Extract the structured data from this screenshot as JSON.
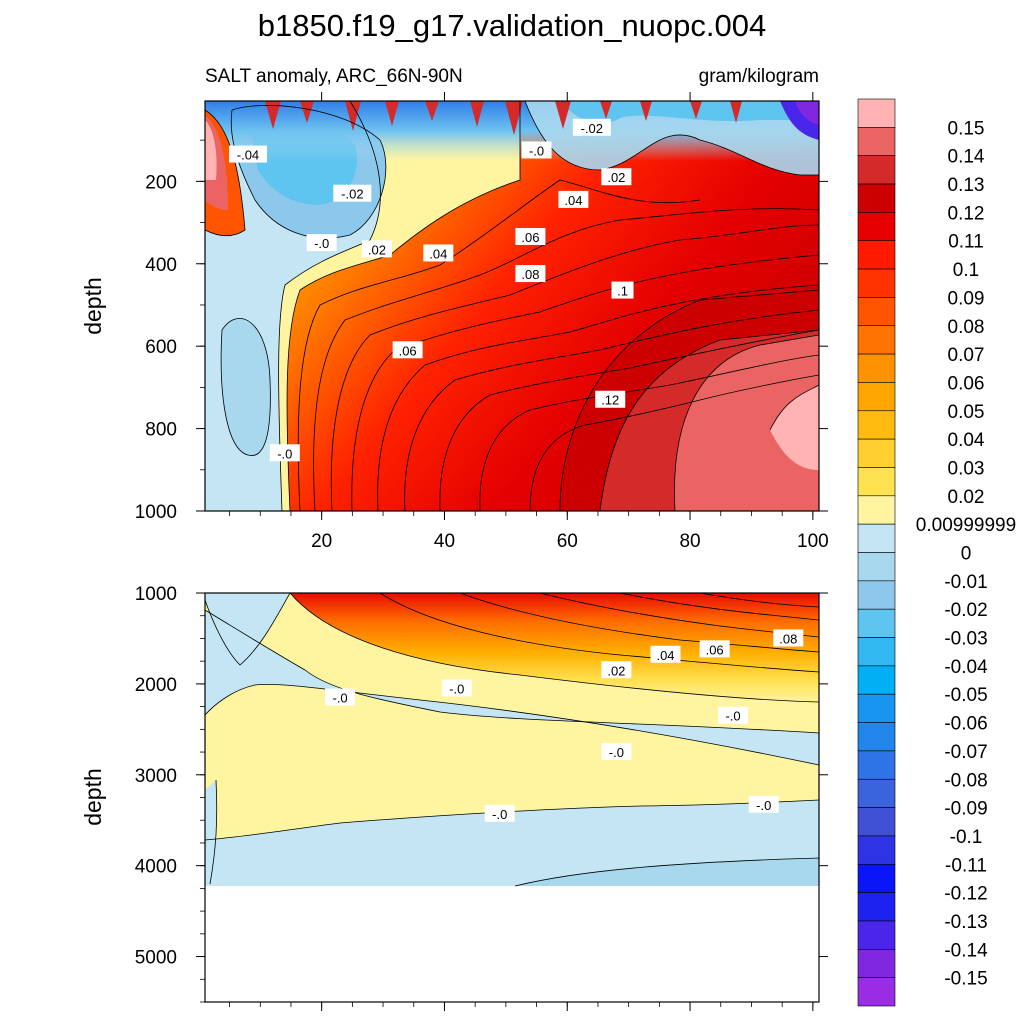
{
  "title": "b1850.f19_g17.validation_nuopc.004",
  "chart_data": [
    {
      "type": "heatmap",
      "panel": "upper",
      "subtitle_left": "SALT anomaly, ARC_66N-90N",
      "subtitle_right": "gram/kilogram",
      "xlabel": "",
      "ylabel": "depth",
      "xlim": [
        1,
        101
      ],
      "ylim": [
        1000,
        5
      ],
      "x_ticks": [
        "20",
        "40",
        "60",
        "80",
        "100"
      ],
      "y_ticks": [
        "200",
        "400",
        "600",
        "800",
        "1000"
      ],
      "contour_labels": [
        {
          "text": "-.04",
          "x": 8,
          "y": 135
        },
        {
          "text": "-.02",
          "x": 25,
          "y": 230
        },
        {
          "text": "-.0",
          "x": 20,
          "y": 350
        },
        {
          "text": "-.0",
          "x": 14,
          "y": 860
        },
        {
          "text": ".02",
          "x": 29,
          "y": 365
        },
        {
          "text": ".04",
          "x": 39,
          "y": 375
        },
        {
          "text": ".06",
          "x": 34,
          "y": 610
        },
        {
          "text": ".06",
          "x": 54,
          "y": 335
        },
        {
          "text": ".08",
          "x": 54,
          "y": 425
        },
        {
          "text": ".1",
          "x": 69,
          "y": 465
        },
        {
          "text": ".12",
          "x": 67,
          "y": 730
        },
        {
          "text": ".04",
          "x": 61,
          "y": 245
        },
        {
          "text": "-.0",
          "x": 55,
          "y": 125
        },
        {
          "text": "-.02",
          "x": 64,
          "y": 70
        },
        {
          "text": ".02",
          "x": 68,
          "y": 190
        }
      ]
    },
    {
      "type": "heatmap",
      "panel": "lower",
      "xlabel": "",
      "ylabel": "depth",
      "xlim": [
        1,
        101
      ],
      "ylim": [
        5500,
        1000
      ],
      "y_ticks": [
        "1000",
        "2000",
        "3000",
        "4000",
        "5000"
      ],
      "data_bottom_depth": 4125,
      "contour_labels": [
        {
          "text": "-.0",
          "x": 23,
          "y": 2150
        },
        {
          "text": "-.0",
          "x": 42,
          "y": 2050
        },
        {
          "text": ".02",
          "x": 68,
          "y": 1850
        },
        {
          "text": ".04",
          "x": 76,
          "y": 1680
        },
        {
          "text": ".06",
          "x": 84,
          "y": 1620
        },
        {
          "text": ".08",
          "x": 96,
          "y": 1500
        },
        {
          "text": "-.0",
          "x": 87,
          "y": 2350
        },
        {
          "text": "-.0",
          "x": 68,
          "y": 2750
        },
        {
          "text": "-.0",
          "x": 49,
          "y": 3430
        },
        {
          "text": "-.0",
          "x": 92,
          "y": 3330
        }
      ]
    }
  ],
  "colorbar": {
    "labels": [
      "0.15",
      "0.14",
      "0.13",
      "0.12",
      "0.11",
      "0.1",
      "0.09",
      "0.08",
      "0.07",
      "0.06",
      "0.05",
      "0.04",
      "0.03",
      "0.02",
      "0.00999999",
      "0",
      "-0.01",
      "-0.02",
      "-0.03",
      "-0.04",
      "-0.05",
      "-0.06",
      "-0.07",
      "-0.08",
      "-0.09",
      "-0.1",
      "-0.11",
      "-0.12",
      "-0.13",
      "-0.14",
      "-0.15"
    ],
    "colors": [
      "#FFB3B3",
      "#EB6464",
      "#D42A2A",
      "#CC0000",
      "#E60000",
      "#FF1A00",
      "#FF3300",
      "#FF5500",
      "#FF7400",
      "#FF9200",
      "#FFA600",
      "#FFBB10",
      "#FFD030",
      "#FFE250",
      "#FFF4A0",
      "#C4E5F4",
      "#A8D8EE",
      "#8CC8EC",
      "#5EC4F0",
      "#32B8F0",
      "#00AFF4",
      "#1795F0",
      "#2285EA",
      "#2E74E6",
      "#3A64DE",
      "#4050D4",
      "#2E34E6",
      "#0A16F8",
      "#1E22F0",
      "#4A26EA",
      "#8028E0",
      "#9A2CE6"
    ]
  }
}
